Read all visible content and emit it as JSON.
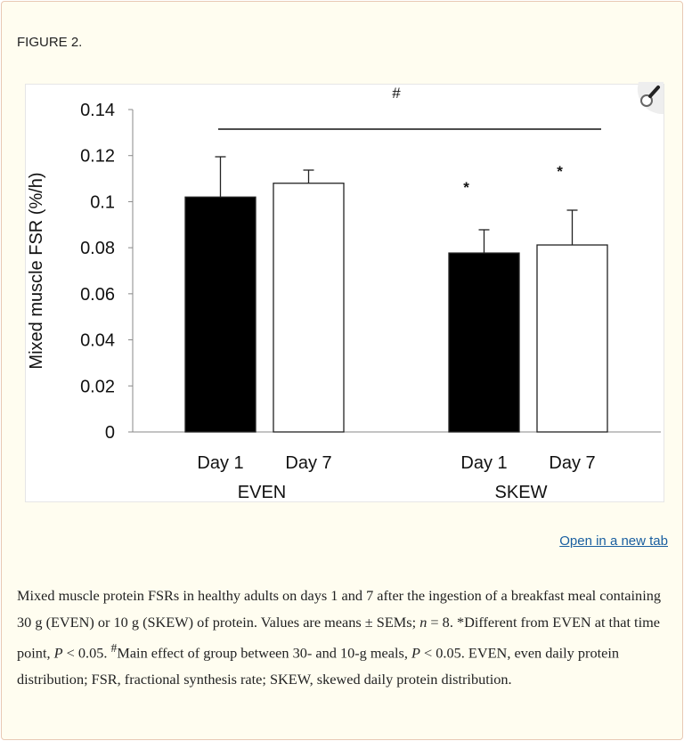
{
  "figure_label": "FIGURE 2.",
  "open_link": "Open in a new tab",
  "caption": {
    "s1": "Mixed muscle protein FSRs in healthy adults on days 1 and 7 after the ingestion of a breakfast meal containing 30 g (EVEN) or 10 g (SKEW) of protein. Values are means ± SEMs; ",
    "s2": "n",
    "s3": " = 8. *Different from EVEN at that time point, ",
    "s4": "P",
    "s5": " < 0.05. ",
    "s6": "#",
    "s7": "Main effect of group between 30- and 10-g meals, ",
    "s8": "P",
    "s9": " < 0.05. EVEN, even daily protein distribution; FSR, fractional synthesis rate; SKEW, skewed daily protein distribution."
  },
  "chart_data": {
    "type": "bar",
    "ylabel": "Mixed muscle FSR (%/h)",
    "ylim": [
      0,
      0.14
    ],
    "yticks": [
      "0",
      "0.02",
      "0.04",
      "0.06",
      "0.08",
      "0.1",
      "0.12",
      "0.14"
    ],
    "groups": [
      "EVEN",
      "SKEW"
    ],
    "categories": [
      "Day 1",
      "Day 7",
      "Day 1",
      "Day 7"
    ],
    "values": [
      0.102,
      0.108,
      0.0777,
      0.0812
    ],
    "errors": [
      0.0175,
      0.0057,
      0.0101,
      0.0151
    ],
    "fills": [
      "#000000",
      "#ffffff",
      "#000000",
      "#ffffff"
    ],
    "asterisks": [
      "",
      "",
      "*",
      "*"
    ],
    "bracket_label": "#",
    "grid": false
  }
}
